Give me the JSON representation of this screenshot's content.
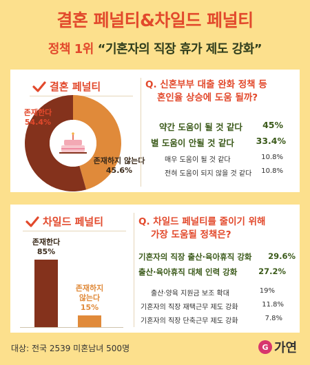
{
  "header": {
    "title": "결혼 페널티&차일드 페널티",
    "subtitle_rank": "정책 1위",
    "subtitle_text": "“기혼자의 직장 휴가 제도 강화”"
  },
  "marriage": {
    "heading": "결혼 페널티",
    "question_line1": "Q. 신혼부부 대출 완화 정책 등",
    "question_line2": "혼인율 상승에 도움 될까?",
    "responses": [
      {
        "label": "약간 도움이 될 것 같다",
        "value": "45%"
      },
      {
        "label": "별 도움이 안될 것 같다",
        "value": "33.4%"
      },
      {
        "label": "매우 도움이 될 것 같다",
        "value": "10.8%"
      },
      {
        "label": "전혀 도움이 되지 않을 것 같다",
        "value": "10.8%"
      }
    ]
  },
  "child": {
    "heading": "차일드 페널티",
    "question_line1": "Q. 차일드 페널티를 줄이기 위해",
    "question_line2": "가장 도움될 정책은?",
    "responses": [
      {
        "label": "기혼자의 직장 출산·육아휴직 강화",
        "value": "29.6%"
      },
      {
        "label": "출산·육아휴직 대체 인력 강화",
        "value": "27.2%"
      },
      {
        "label": "출산·양육 지원금 보조 확대",
        "value": "19%"
      },
      {
        "label": "기혼자의 직장 재택근무 제도 강화",
        "value": "11.8%"
      },
      {
        "label": "기혼자의 직장 단축근무 제도 강화",
        "value": "7.8%"
      }
    ]
  },
  "chart_data": [
    {
      "type": "pie",
      "categories": [
        "존재한다",
        "존재하지 않는다"
      ],
      "values": [
        54.4,
        45.6
      ],
      "value_labels": [
        "54.4%",
        "45.6%"
      ],
      "colors": [
        "#84321c",
        "#e08a3a"
      ]
    },
    {
      "type": "bar",
      "categories": [
        "존재한다",
        "존재하지 않는다"
      ],
      "label_lines": [
        [
          "존재한다"
        ],
        [
          "존재하지",
          "않는다"
        ]
      ],
      "values": [
        85,
        15
      ],
      "value_labels": [
        "85%",
        "15%"
      ],
      "colors": [
        "#84321c",
        "#e08a3a"
      ]
    }
  ],
  "footer": {
    "note": "대상: 전국 2539 미혼남녀 500명",
    "brand": "가연",
    "brand_mark": "G"
  },
  "colors": {
    "background": "#fce08d",
    "accent_red": "#e2492c",
    "dark_brown": "#84321c",
    "orange": "#e08a3a",
    "green_text": "#3b5a1a"
  }
}
